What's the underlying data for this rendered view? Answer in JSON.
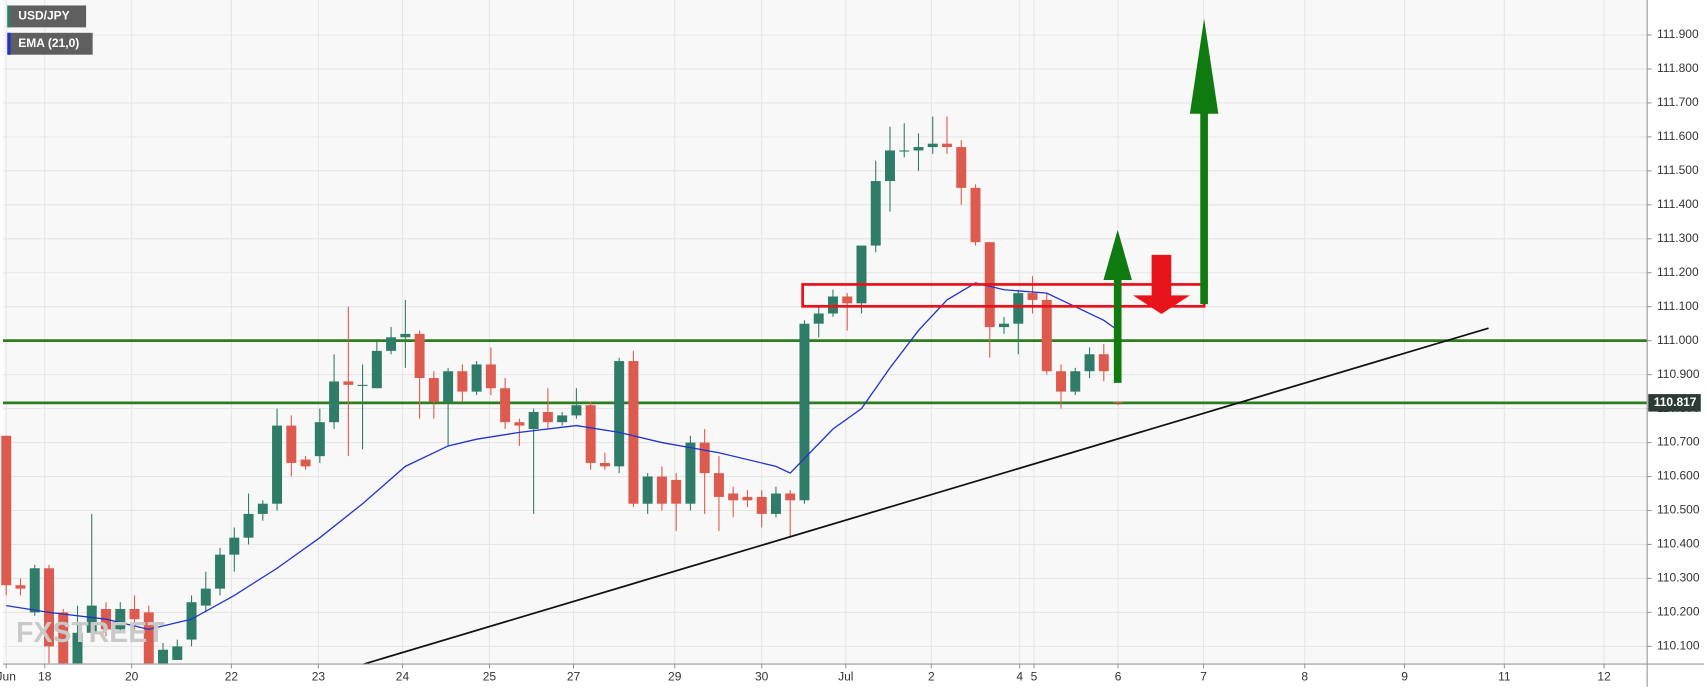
{
  "chart_data": {
    "type": "candlestick",
    "watermark": "FXSTREET",
    "xlim": [
      -0.23,
      115.12
    ],
    "ylim": [
      110.048,
      112.003
    ],
    "xticks": [
      {
        "value": 0,
        "label": "Jun"
      },
      {
        "value": 2.7,
        "label": "18"
      },
      {
        "value": 8.8,
        "label": "20"
      },
      {
        "value": 15.8,
        "label": "22"
      },
      {
        "value": 21.9,
        "label": "23"
      },
      {
        "value": 27.8,
        "label": "24"
      },
      {
        "value": 33.9,
        "label": "25"
      },
      {
        "value": 39.8,
        "label": "27"
      },
      {
        "value": 46.9,
        "label": "29"
      },
      {
        "value": 53,
        "label": "30"
      },
      {
        "value": 58.9,
        "label": "Jul"
      },
      {
        "value": 64.9,
        "label": "2"
      },
      {
        "value": 71.1,
        "label": "4"
      },
      {
        "value": 72.1,
        "label": "5"
      },
      {
        "value": 78,
        "label": "6"
      },
      {
        "value": 84,
        "label": "7"
      },
      {
        "value": 91.1,
        "label": "8"
      },
      {
        "value": 98.1,
        "label": "9"
      },
      {
        "value": 105.1,
        "label": "11"
      },
      {
        "value": 112.1,
        "label": "12"
      }
    ],
    "yticks": [
      {
        "value": 110.1,
        "label": "110.100"
      },
      {
        "value": 110.2,
        "label": "110.200"
      },
      {
        "value": 110.3,
        "label": "110.300"
      },
      {
        "value": 110.4,
        "label": "110.400"
      },
      {
        "value": 110.5,
        "label": "110.500"
      },
      {
        "value": 110.6,
        "label": "110.600"
      },
      {
        "value": 110.7,
        "label": "110.700"
      },
      {
        "value": 110.8,
        "label": "110.800"
      },
      {
        "value": 110.9,
        "label": "110.900"
      },
      {
        "value": 111.0,
        "label": "111.000"
      },
      {
        "value": 111.1,
        "label": "111.100"
      },
      {
        "value": 111.2,
        "label": "111.200"
      },
      {
        "value": 111.3,
        "label": "111.300"
      },
      {
        "value": 111.4,
        "label": "111.400"
      },
      {
        "value": 111.5,
        "label": "111.500"
      },
      {
        "value": 111.6,
        "label": "111.600"
      },
      {
        "value": 111.7,
        "label": "111.700"
      },
      {
        "value": 111.8,
        "label": "111.800"
      },
      {
        "value": 111.9,
        "label": "111.900"
      }
    ],
    "grid": true,
    "levels": [
      111.0,
      110.817
    ],
    "level_color": "#2e7d1e",
    "x": [
      0,
      1,
      2,
      3,
      4,
      5,
      6,
      7,
      8,
      9,
      10,
      11,
      12,
      13,
      14,
      15,
      16,
      17,
      18,
      19,
      20,
      21,
      22,
      23,
      24,
      25,
      26,
      27,
      28,
      29,
      30,
      31,
      32,
      33,
      34,
      35,
      36,
      37,
      38,
      39,
      40,
      41,
      42,
      43,
      44,
      45,
      46,
      47,
      48,
      49,
      50,
      51,
      52,
      53,
      54,
      55,
      56,
      57,
      58,
      59,
      60,
      61,
      62,
      63,
      64,
      65,
      66,
      67,
      68,
      69,
      70,
      71,
      72,
      73,
      74,
      75,
      76,
      77,
      78
    ],
    "series": [
      {
        "name": "USD/JPY",
        "up_color": "#2f7d68",
        "down_color": "#dd5a4e",
        "open": [
          110.72,
          110.28,
          110.2,
          110.33,
          110.2,
          110.05,
          110.14,
          110.21,
          110.15,
          110.21,
          110.2,
          110.05,
          110.06,
          110.12,
          110.22,
          110.27,
          110.37,
          110.42,
          110.49,
          110.52,
          110.75,
          110.65,
          110.66,
          110.76,
          110.88,
          110.87,
          110.86,
          110.97,
          111.01,
          111.02,
          110.89,
          110.82,
          110.91,
          110.85,
          110.93,
          110.86,
          110.76,
          110.74,
          110.79,
          110.76,
          110.78,
          110.81,
          110.64,
          110.63,
          110.94,
          110.52,
          110.6,
          110.59,
          110.52,
          110.7,
          110.61,
          110.55,
          110.54,
          110.54,
          110.49,
          110.55,
          110.53,
          111.05,
          111.08,
          111.13,
          111.11,
          111.28,
          111.47,
          111.56,
          111.56,
          111.57,
          111.58,
          111.57,
          111.45,
          111.29,
          111.04,
          111.05,
          111.14,
          111.12,
          110.91,
          110.85,
          110.91,
          110.96,
          110.82
        ],
        "high": [
          110.72,
          110.3,
          110.34,
          110.34,
          110.21,
          110.22,
          110.49,
          110.23,
          110.23,
          110.25,
          110.22,
          110.11,
          110.12,
          110.25,
          110.32,
          110.39,
          110.45,
          110.55,
          110.53,
          110.8,
          110.78,
          110.66,
          110.8,
          110.96,
          111.1,
          110.93,
          111.0,
          111.04,
          111.12,
          111.03,
          110.91,
          110.92,
          110.93,
          110.94,
          110.98,
          110.89,
          110.77,
          110.8,
          110.86,
          110.79,
          110.86,
          110.82,
          110.67,
          110.95,
          110.97,
          110.61,
          110.63,
          110.61,
          110.72,
          110.74,
          110.66,
          110.57,
          110.56,
          110.56,
          110.57,
          110.56,
          111.06,
          111.1,
          111.15,
          111.14,
          111.28,
          111.53,
          111.63,
          111.64,
          111.61,
          111.66,
          111.66,
          111.59,
          111.46,
          111.29,
          111.07,
          111.15,
          111.19,
          111.14,
          110.93,
          110.92,
          110.98,
          110.99,
          110.82
        ],
        "low": [
          110.25,
          110.25,
          110.19,
          110.05,
          110.05,
          110.05,
          110.13,
          110.13,
          110.14,
          110.15,
          110.05,
          110.05,
          110.06,
          110.1,
          110.2,
          110.25,
          110.32,
          110.4,
          110.47,
          110.5,
          110.6,
          110.62,
          110.64,
          110.74,
          110.66,
          110.68,
          110.86,
          110.96,
          110.92,
          110.77,
          110.77,
          110.69,
          110.82,
          110.84,
          110.84,
          110.74,
          110.69,
          110.49,
          110.74,
          110.75,
          110.77,
          110.62,
          110.62,
          110.61,
          110.51,
          110.49,
          110.5,
          110.44,
          110.5,
          110.49,
          110.44,
          110.48,
          110.51,
          110.45,
          110.48,
          110.42,
          110.52,
          111.01,
          111.07,
          111.03,
          111.08,
          111.26,
          111.38,
          111.54,
          111.5,
          111.55,
          111.55,
          111.4,
          111.28,
          110.95,
          111.02,
          110.96,
          111.08,
          110.9,
          110.8,
          110.84,
          110.89,
          110.88,
          110.81
        ],
        "close": [
          110.28,
          110.27,
          110.33,
          110.1,
          110.05,
          110.14,
          110.22,
          110.15,
          110.21,
          110.18,
          110.05,
          110.09,
          110.1,
          110.23,
          110.27,
          110.37,
          110.42,
          110.49,
          110.52,
          110.75,
          110.64,
          110.63,
          110.76,
          110.88,
          110.87,
          110.87,
          110.97,
          111.01,
          111.02,
          110.89,
          110.82,
          110.91,
          110.85,
          110.93,
          110.86,
          110.76,
          110.75,
          110.79,
          110.76,
          110.78,
          110.81,
          110.64,
          110.63,
          110.94,
          110.52,
          110.6,
          110.52,
          110.52,
          110.7,
          110.61,
          110.54,
          110.53,
          110.53,
          110.49,
          110.55,
          110.53,
          111.05,
          111.08,
          111.13,
          111.11,
          111.28,
          111.47,
          111.56,
          111.56,
          111.57,
          111.58,
          111.57,
          111.45,
          111.29,
          111.04,
          111.05,
          111.14,
          111.12,
          110.91,
          110.85,
          110.91,
          110.96,
          110.91,
          110.817
        ]
      },
      {
        "name": "EMA (21,0)",
        "type": "line",
        "color": "#2233cc",
        "x": [
          0,
          3,
          7,
          10,
          13,
          16,
          19,
          22,
          25,
          28,
          31,
          33,
          36,
          40,
          43,
          46,
          50,
          54,
          55,
          58,
          60,
          62,
          64,
          66,
          68,
          70,
          73,
          75,
          77,
          78
        ],
        "values": [
          110.22,
          110.2,
          110.18,
          110.15,
          110.18,
          110.25,
          110.33,
          110.42,
          110.52,
          110.63,
          110.69,
          110.71,
          110.73,
          110.75,
          110.73,
          110.7,
          110.67,
          110.63,
          110.61,
          110.74,
          110.8,
          110.92,
          111.03,
          111.12,
          111.17,
          111.15,
          111.14,
          111.1,
          111.06,
          111.03
        ]
      }
    ]
  }
}
